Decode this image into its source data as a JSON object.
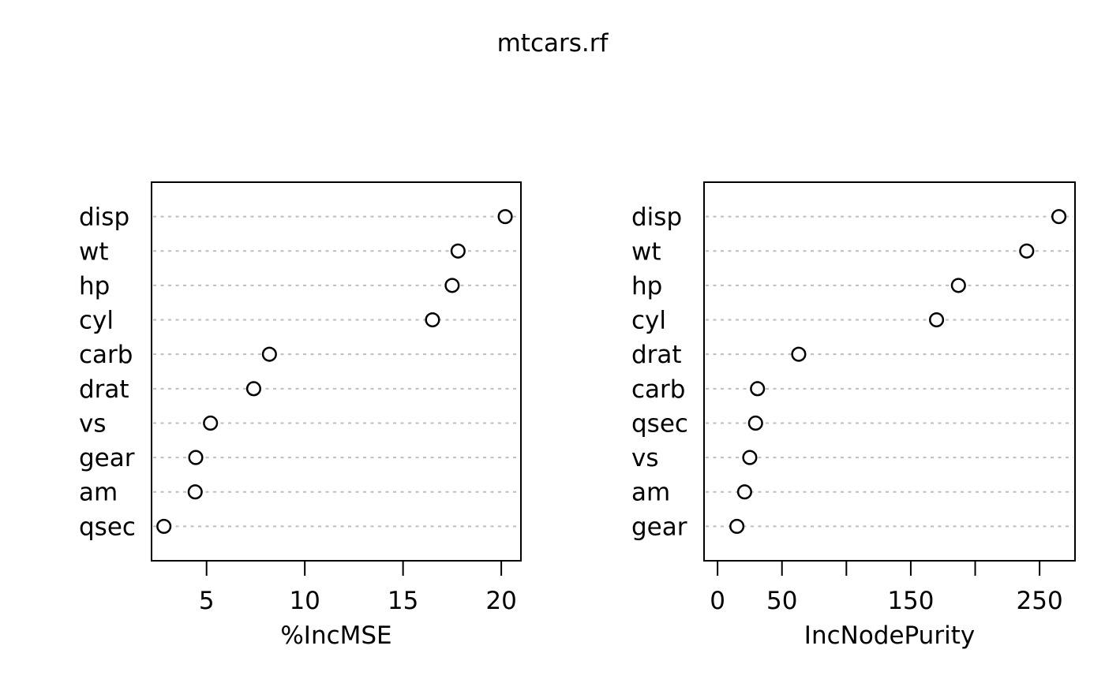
{
  "figure": {
    "title": "mtcars.rf"
  },
  "style": {
    "foreground": "#000000",
    "background": "#ffffff",
    "grid_color": "#bebebe"
  },
  "chart_data": [
    {
      "type": "scatter",
      "variant": "dot-chart",
      "panel": "left",
      "title": "mtcars.rf",
      "xlabel": "%IncMSE",
      "ylabel": "",
      "row_order": "top-to-bottom",
      "categories": [
        "disp",
        "wt",
        "hp",
        "cyl",
        "carb",
        "drat",
        "vs",
        "gear",
        "am",
        "qsec"
      ],
      "values": [
        20.2,
        17.8,
        17.5,
        16.5,
        8.2,
        7.4,
        5.2,
        4.45,
        4.42,
        2.83
      ],
      "xlim": [
        2.2,
        21.0
      ],
      "xticks": [
        5,
        10,
        15,
        20
      ],
      "xtick_labels": [
        "5",
        "10",
        "15",
        "20"
      ],
      "grid": "horizontal-dashed",
      "legend": "none",
      "point_style": "open-circle"
    },
    {
      "type": "scatter",
      "variant": "dot-chart",
      "panel": "right",
      "title": "mtcars.rf",
      "xlabel": "IncNodePurity",
      "ylabel": "",
      "row_order": "top-to-bottom",
      "categories": [
        "disp",
        "wt",
        "hp",
        "cyl",
        "drat",
        "carb",
        "qsec",
        "vs",
        "am",
        "gear"
      ],
      "values": [
        265,
        240,
        187,
        170,
        63,
        31,
        29.5,
        25,
        21,
        15
      ],
      "xlim": [
        -10.5,
        277.5
      ],
      "xticks": [
        0,
        50,
        100,
        150,
        200,
        250
      ],
      "xtick_labels": [
        "0",
        "50",
        "",
        "150",
        "",
        "250"
      ],
      "grid": "horizontal-dashed",
      "legend": "none",
      "point_style": "open-circle"
    }
  ]
}
